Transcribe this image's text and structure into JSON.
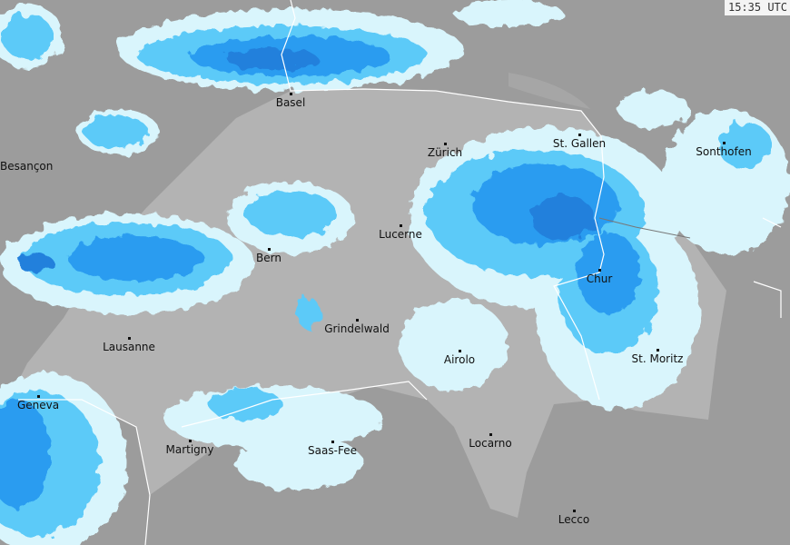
{
  "timestamp": "15:35 UTC",
  "colors": {
    "background": "#9c9c9c",
    "country": "#b3b3b3",
    "precip_light": "#d9f5fc",
    "precip_moderate": "#5ccaf8",
    "precip_heavy": "#2b9cf0",
    "precip_intense": "#2080dc",
    "border": "#ffffff"
  },
  "cities": [
    {
      "name": "Basel"
    },
    {
      "name": "Besançon"
    },
    {
      "name": "Zürich"
    },
    {
      "name": "St. Gallen"
    },
    {
      "name": "Sonthofen"
    },
    {
      "name": "Lucerne"
    },
    {
      "name": "Bern"
    },
    {
      "name": "Chur"
    },
    {
      "name": "Grindelwald"
    },
    {
      "name": "Lausanne"
    },
    {
      "name": "Airolo"
    },
    {
      "name": "St. Moritz"
    },
    {
      "name": "Geneva"
    },
    {
      "name": "Martigny"
    },
    {
      "name": "Saas-Fee"
    },
    {
      "name": "Locarno"
    },
    {
      "name": "Lecco"
    }
  ]
}
